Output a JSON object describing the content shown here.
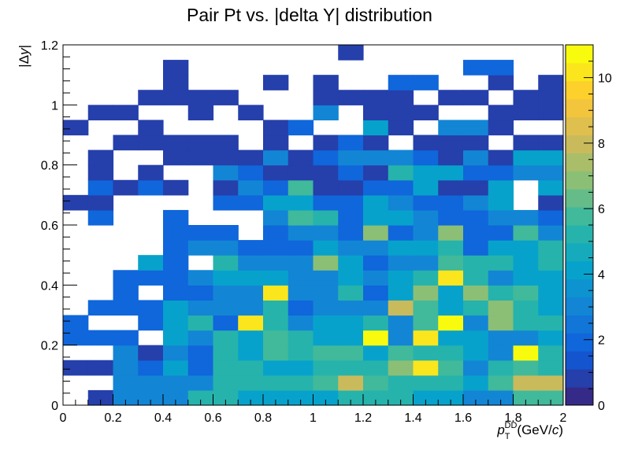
{
  "chart_data": {
    "type": "heatmap",
    "title": "Pair Pt vs. |delta Y| distribution",
    "xlabel": {
      "main": "p",
      "sub": "T",
      "sup": "DD",
      "unit_open": "(GeV/",
      "unit_var": "c",
      "unit_close": ")"
    },
    "ylabel": {
      "prefix": "|",
      "delta": "Δ",
      "var": "y",
      "suffix": "|"
    },
    "xlim": [
      0,
      2
    ],
    "ylim": [
      0,
      1.2
    ],
    "x_bins": 20,
    "y_bins": 24,
    "x_ticks": [
      0,
      0.2,
      0.4,
      0.6,
      0.8,
      1,
      1.2,
      1.4,
      1.6,
      1.8,
      2
    ],
    "x_tick_labels": [
      "0",
      "0.2",
      "0.4",
      "0.6",
      "0.8",
      "1",
      "1.2",
      "1.4",
      "1.6",
      "1.8",
      "2"
    ],
    "y_ticks": [
      0,
      0.2,
      0.4,
      0.6,
      0.8,
      1,
      1.2
    ],
    "y_tick_labels": [
      "0",
      "0.2",
      "0.4",
      "0.6",
      "0.8",
      "1",
      "1.2"
    ],
    "z_range": [
      0,
      11
    ],
    "z_ticks": [
      0,
      2,
      4,
      6,
      8,
      10
    ],
    "z_tick_labels": [
      "0",
      "2",
      "4",
      "6",
      "8",
      "10"
    ],
    "palette": "kBird",
    "grid": false,
    "cells": [
      [
        0,
        1,
        3,
        3,
        3,
        5,
        5,
        4,
        4,
        4,
        4,
        5,
        5,
        5,
        4,
        4,
        3,
        3,
        6,
        6
      ],
      [
        0,
        0,
        3,
        3,
        3,
        3,
        5,
        5,
        5,
        5,
        6,
        8,
        6,
        5,
        5,
        5,
        4,
        6,
        8,
        8
      ],
      [
        1,
        1,
        3,
        2,
        4,
        2,
        5,
        5,
        4,
        4,
        5,
        5,
        5,
        7,
        10,
        6,
        3,
        5,
        6,
        5
      ],
      [
        0,
        0,
        3,
        1,
        3,
        2,
        5,
        4,
        6,
        5,
        6,
        6,
        4,
        6,
        5,
        5,
        4,
        3,
        11,
        5
      ],
      [
        2,
        2,
        2,
        0,
        4,
        3,
        5,
        4,
        6,
        5,
        4,
        4,
        11,
        3,
        10,
        4,
        4,
        3,
        3,
        4
      ],
      [
        2,
        0,
        0,
        2,
        4,
        5,
        2,
        10,
        5,
        3,
        4,
        4,
        5,
        3,
        6,
        11,
        3,
        7,
        5,
        5
      ],
      [
        0,
        2,
        2,
        2,
        4,
        3,
        3,
        3,
        5,
        2,
        3,
        3,
        3,
        8,
        6,
        4,
        5,
        7,
        5,
        4
      ],
      [
        0,
        0,
        2,
        0,
        2,
        2,
        3,
        3,
        10,
        3,
        3,
        5,
        2,
        4,
        7,
        4,
        7,
        5,
        6,
        4
      ],
      [
        0,
        0,
        2,
        2,
        2,
        3,
        4,
        4,
        4,
        3,
        3,
        4,
        3,
        4,
        5,
        10,
        5,
        3,
        4,
        4
      ],
      [
        0,
        0,
        0,
        4,
        2,
        0,
        5,
        3,
        3,
        3,
        7,
        4,
        2,
        3,
        3,
        6,
        5,
        5,
        4,
        5
      ],
      [
        0,
        0,
        0,
        0,
        2,
        3,
        3,
        2,
        2,
        2,
        4,
        3,
        3,
        4,
        4,
        5,
        2,
        4,
        4,
        5
      ],
      [
        0,
        0,
        0,
        0,
        2,
        2,
        2,
        0,
        2,
        3,
        3,
        2,
        7,
        2,
        3,
        7,
        2,
        2,
        6,
        3
      ],
      [
        0,
        2,
        0,
        0,
        2,
        0,
        0,
        0,
        3,
        6,
        5,
        2,
        4,
        4,
        3,
        2,
        2,
        3,
        3,
        2
      ],
      [
        1,
        1,
        0,
        0,
        0,
        0,
        2,
        2,
        4,
        4,
        2,
        2,
        4,
        3,
        2,
        2,
        3,
        4,
        0,
        1
      ],
      [
        0,
        2,
        1,
        2,
        1,
        0,
        1,
        3,
        2,
        6,
        1,
        1,
        2,
        2,
        4,
        1,
        1,
        4,
        0,
        4
      ],
      [
        0,
        1,
        0,
        1,
        0,
        0,
        3,
        2,
        1,
        1,
        1,
        2,
        1,
        5,
        4,
        4,
        2,
        2,
        3,
        3
      ],
      [
        0,
        1,
        0,
        0,
        1,
        1,
        1,
        1,
        3,
        1,
        2,
        3,
        3,
        3,
        2,
        1,
        3,
        1,
        4,
        4
      ],
      [
        0,
        0,
        1,
        1,
        1,
        1,
        1,
        0,
        1,
        0,
        1,
        2,
        1,
        0,
        1,
        1,
        1,
        0,
        1,
        1
      ],
      [
        1,
        0,
        0,
        1,
        0,
        0,
        0,
        0,
        1,
        2,
        0,
        0,
        4,
        1,
        0,
        3,
        3,
        1,
        0,
        0
      ],
      [
        0,
        1,
        1,
        0,
        0,
        1,
        0,
        1,
        0,
        0,
        3,
        0,
        1,
        1,
        1,
        0,
        0,
        1,
        1,
        1
      ],
      [
        0,
        0,
        0,
        1,
        1,
        1,
        1,
        0,
        0,
        0,
        1,
        1,
        1,
        1,
        0,
        1,
        1,
        0,
        1,
        1
      ],
      [
        0,
        0,
        0,
        0,
        1,
        0,
        0,
        0,
        1,
        0,
        1,
        0,
        0,
        2,
        2,
        0,
        0,
        1,
        0,
        1
      ],
      [
        0,
        0,
        0,
        0,
        1,
        0,
        0,
        0,
        0,
        0,
        0,
        0,
        0,
        0,
        0,
        0,
        2,
        2,
        0,
        0
      ],
      [
        0,
        0,
        0,
        0,
        0,
        0,
        0,
        0,
        0,
        0,
        0,
        1,
        0,
        0,
        0,
        0,
        0,
        0,
        0,
        0
      ]
    ]
  }
}
